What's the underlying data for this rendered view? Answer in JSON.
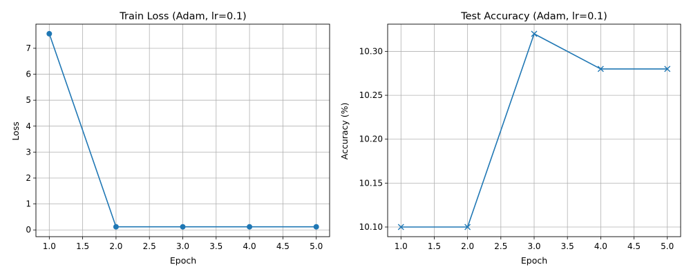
{
  "chart_data": [
    {
      "type": "line",
      "title": "Train Loss (Adam, lr=0.1)",
      "xlabel": "Epoch",
      "ylabel": "Loss",
      "x": [
        1,
        2,
        3,
        4,
        5
      ],
      "series": [
        {
          "values": [
            7.56,
            0.12,
            0.12,
            0.12,
            0.12
          ],
          "marker": "o",
          "color": "#1f77b4"
        }
      ],
      "xlim": [
        0.8,
        5.2
      ],
      "ylim": [
        -0.26,
        7.93
      ],
      "xticks": [
        1.0,
        1.5,
        2.0,
        2.5,
        3.0,
        3.5,
        4.0,
        4.5,
        5.0
      ],
      "yticks": [
        0,
        1,
        2,
        3,
        4,
        5,
        6,
        7
      ],
      "xtick_labels": [
        "1.0",
        "1.5",
        "2.0",
        "2.5",
        "3.0",
        "3.5",
        "4.0",
        "4.5",
        "5.0"
      ],
      "ytick_labels": [
        "0",
        "1",
        "2",
        "3",
        "4",
        "5",
        "6",
        "7"
      ],
      "grid": true
    },
    {
      "type": "line",
      "title": "Test Accuracy (Adam, lr=0.1)",
      "xlabel": "Epoch",
      "ylabel": "Accuracy (%)",
      "x": [
        1,
        2,
        3,
        4,
        5
      ],
      "series": [
        {
          "values": [
            10.1,
            10.1,
            10.32,
            10.28,
            10.28
          ],
          "marker": "x",
          "color": "#1f77b4"
        }
      ],
      "xlim": [
        0.8,
        5.2
      ],
      "ylim": [
        10.089,
        10.331
      ],
      "xticks": [
        1.0,
        1.5,
        2.0,
        2.5,
        3.0,
        3.5,
        4.0,
        4.5,
        5.0
      ],
      "yticks": [
        10.1,
        10.15,
        10.2,
        10.25,
        10.3
      ],
      "xtick_labels": [
        "1.0",
        "1.5",
        "2.0",
        "2.5",
        "3.0",
        "3.5",
        "4.0",
        "4.5",
        "5.0"
      ],
      "ytick_labels": [
        "10.10",
        "10.15",
        "10.20",
        "10.25",
        "10.30"
      ],
      "grid": true
    }
  ]
}
